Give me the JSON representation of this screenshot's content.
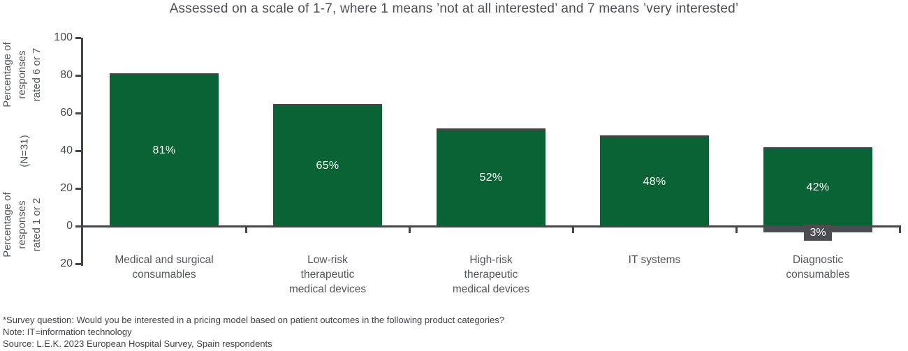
{
  "title": "Assessed on a scale of 1-7, where 1 means ’not at all interested’ and 7 means ’very interested’",
  "axis": {
    "y_left_top_label": "Percentage of\nresponses\nrated 6 or 7",
    "y_left_mid_label": "(N=31)",
    "y_left_bottom_label": "Percentage of\nresponses\nrated 1 or 2"
  },
  "chart_data": {
    "type": "bar",
    "title": "Assessed on a scale of 1-7, where 1 means ’not at all interested’ and 7 means ’very interested’",
    "categories": [
      "Medical and surgical consumables",
      "Low-risk therapeutic medical devices",
      "High-risk therapeutic medical devices",
      "IT systems",
      "Diagnostic consumables"
    ],
    "category_label_lines": [
      "Medical and surgical\nconsumables",
      "Low-risk\ntherapeutic\nmedical devices",
      "High-risk\ntherapeutic\nmedical devices",
      "IT systems",
      "Diagnostic\nconsumables"
    ],
    "series": [
      {
        "name": "Percentage of responses rated 6 or 7",
        "unit": "%",
        "values": [
          81,
          65,
          52,
          48,
          42
        ],
        "labels": [
          "81%",
          "65%",
          "52%",
          "48%",
          "42%"
        ],
        "color": "#0a6334",
        "direction": "up"
      },
      {
        "name": "Percentage of responses rated 1 or 2",
        "unit": "%",
        "values": [
          0,
          0,
          0,
          0,
          3
        ],
        "labels": [
          "",
          "",
          "",
          "",
          "3%"
        ],
        "color": "#4a4e53",
        "direction": "down"
      }
    ],
    "sample_size": "(N=31)",
    "ylim": [
      -20,
      100
    ],
    "y_ticks": [
      100,
      80,
      60,
      40,
      20,
      0,
      -20
    ],
    "y_tick_labels": [
      "100",
      "80",
      "60",
      "40",
      "20",
      "0",
      "20"
    ],
    "grid": false,
    "legend_position": "none"
  },
  "footnotes": [
    "*Survey question: Would you be interested in a pricing model based on patient outcomes in the following product categories?",
    "Note: IT=information technology",
    "Source: L.E.K. 2023 European Hospital Survey, Spain respondents"
  ],
  "colors": {
    "bar_positive": "#0a6334",
    "bar_negative": "#4a4e53",
    "axis": "#42464b",
    "title_text": "#4b5055",
    "label_text": "#54585d",
    "footnote_text": "#3e4246",
    "bar_value_text": "#ffffff",
    "background": "#ffffff"
  }
}
